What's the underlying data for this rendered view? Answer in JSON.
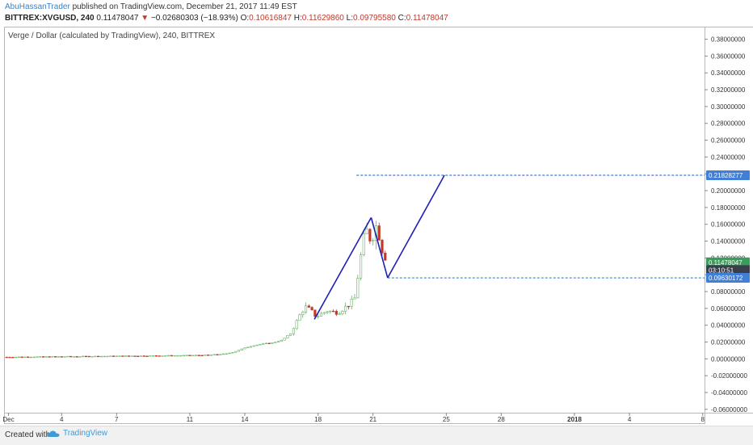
{
  "header": {
    "author": "AbuHassanTrader",
    "published_text": "published on TradingView.com, December 21, 2017 11:49 EST",
    "symbol": "BITTREX:XVGUSD, 240",
    "last": "0.11478047",
    "change_arrow": "▼",
    "change": "−0.02680303 (−18.93%)",
    "o_label": "O:",
    "o_value": "0.10616847",
    "h_label": "H:",
    "h_value": "0.11629860",
    "l_label": "L:",
    "l_value": "0.09795580",
    "c_label": "C:",
    "c_value": "0.11478047"
  },
  "chart_title": "Verge / Dollar (calculated by TradingView), 240, BITTREX",
  "footer": {
    "created_with": "Created with",
    "brand": "TradingView"
  },
  "colors": {
    "up": "#6ab46a",
    "down": "#c0392b",
    "drawing": "#1f1fb8",
    "hline": "#3f7fd8",
    "tag_blue": "#3f7fd8",
    "tag_green": "#3c9c5c",
    "tag_dark": "#3a3f4a",
    "axis_text": "#333333"
  },
  "chart_data": {
    "type": "candlestick",
    "y_ticks": [
      "0.38000000",
      "0.36000000",
      "0.34000000",
      "0.32000000",
      "0.30000000",
      "0.28000000",
      "0.26000000",
      "0.24000000",
      "0.22000000",
      "0.20000000",
      "0.18000000",
      "0.16000000",
      "0.14000000",
      "0.12000000",
      "0.10000000",
      "0.08000000",
      "0.06000000",
      "0.04000000",
      "0.02000000",
      "0.00000000",
      "-0.02000000",
      "-0.04000000",
      "-0.06000000"
    ],
    "y_tick_values": [
      0.38,
      0.36,
      0.34,
      0.32,
      0.3,
      0.28,
      0.26,
      0.24,
      0.22,
      0.2,
      0.18,
      0.16,
      0.14,
      0.12,
      0.1,
      0.08,
      0.06,
      0.04,
      0.02,
      0.0,
      -0.02,
      -0.04,
      -0.06
    ],
    "ylim": [
      -0.064,
      0.394
    ],
    "x_ticks": [
      {
        "label": "Dec",
        "day": 0.1,
        "bold": false
      },
      {
        "label": "4",
        "day": 3,
        "bold": false
      },
      {
        "label": "7",
        "day": 6,
        "bold": false
      },
      {
        "label": "11",
        "day": 10,
        "bold": false
      },
      {
        "label": "14",
        "day": 13,
        "bold": false
      },
      {
        "label": "18",
        "day": 17,
        "bold": false
      },
      {
        "label": "21",
        "day": 20,
        "bold": false
      },
      {
        "label": "25",
        "day": 24,
        "bold": false
      },
      {
        "label": "28",
        "day": 27,
        "bold": false
      },
      {
        "label": "2018",
        "day": 31,
        "bold": true
      },
      {
        "label": "4",
        "day": 34,
        "bold": false
      },
      {
        "label": "8",
        "day": 38,
        "bold": false
      }
    ],
    "xlim": [
      -0.1,
      38.1
    ],
    "price_tags": [
      {
        "label": "0.21828277",
        "value": 0.21828,
        "color": "blue"
      },
      {
        "label": "0.11478047",
        "value": 0.11478,
        "color": "green"
      },
      {
        "label": "03:10:51",
        "value": 0.10555,
        "color": "dark"
      },
      {
        "label": "0.09630172",
        "value": 0.0963,
        "color": "blue"
      }
    ],
    "hlines": [
      {
        "value": 0.21828,
        "from_day": 19.1
      },
      {
        "value": 0.0963,
        "from_day": 20.8
      }
    ],
    "drawings": [
      {
        "type": "trendline",
        "points": [
          [
            16.8,
            0.047
          ],
          [
            19.9,
            0.168
          ]
        ]
      },
      {
        "type": "trendline",
        "points": [
          [
            20.8,
            0.0963
          ],
          [
            23.9,
            0.21828
          ]
        ]
      }
    ],
    "price_series": [
      {
        "day": 0.0,
        "close": 0.0021
      },
      {
        "day": 1.0,
        "close": 0.0023
      },
      {
        "day": 2.0,
        "close": 0.0025
      },
      {
        "day": 3.0,
        "close": 0.0027
      },
      {
        "day": 4.0,
        "close": 0.0029
      },
      {
        "day": 5.0,
        "close": 0.0031
      },
      {
        "day": 6.0,
        "close": 0.0033
      },
      {
        "day": 7.0,
        "close": 0.0035
      },
      {
        "day": 8.0,
        "close": 0.0037
      },
      {
        "day": 9.0,
        "close": 0.0039
      },
      {
        "day": 10.0,
        "close": 0.0041
      },
      {
        "day": 11.0,
        "close": 0.0045
      },
      {
        "day": 12.0,
        "close": 0.006
      },
      {
        "day": 12.5,
        "close": 0.009
      },
      {
        "day": 13.0,
        "close": 0.013
      },
      {
        "day": 13.5,
        "close": 0.016
      },
      {
        "day": 14.0,
        "close": 0.018
      },
      {
        "day": 14.5,
        "close": 0.019
      },
      {
        "day": 15.0,
        "close": 0.022
      },
      {
        "day": 15.5,
        "close": 0.03
      },
      {
        "day": 16.0,
        "close": 0.052
      },
      {
        "day": 16.3,
        "close": 0.062
      },
      {
        "day": 16.6,
        "close": 0.058
      },
      {
        "day": 16.9,
        "close": 0.05
      },
      {
        "day": 17.2,
        "close": 0.054
      },
      {
        "day": 17.5,
        "close": 0.057
      },
      {
        "day": 17.8,
        "close": 0.056
      },
      {
        "day": 18.1,
        "close": 0.055
      },
      {
        "day": 18.4,
        "close": 0.06
      },
      {
        "day": 18.7,
        "close": 0.065
      },
      {
        "day": 19.0,
        "close": 0.072
      },
      {
        "day": 19.3,
        "close": 0.118
      },
      {
        "day": 19.6,
        "close": 0.155
      },
      {
        "day": 19.9,
        "close": 0.14
      },
      {
        "day": 20.2,
        "close": 0.16
      },
      {
        "day": 20.5,
        "close": 0.13
      },
      {
        "day": 20.8,
        "close": 0.11478
      }
    ]
  }
}
